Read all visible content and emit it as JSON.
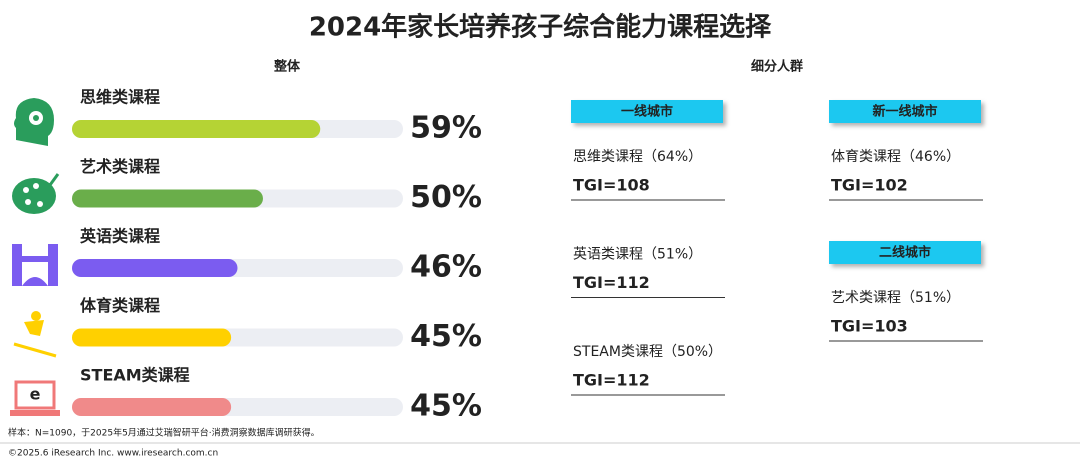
{
  "chart_data": {
    "type": "bar",
    "orientation": "horizontal",
    "title": "2024年家长培养孩子综合能力课程选择",
    "subtitle": "整体",
    "categories": [
      "思维类课程",
      "艺术类课程",
      "英语类课程",
      "体育类课程",
      "STEAM类课程"
    ],
    "values": [
      59,
      50,
      46,
      45,
      45
    ],
    "value_labels": [
      "59%",
      "50%",
      "46%",
      "45%",
      "45%"
    ],
    "colors": [
      "#b5d334",
      "#6aae4a",
      "#7b5cf0",
      "#ffd000",
      "#f08a8a"
    ],
    "track_color": "#eceef3",
    "xlim": [
      20,
      72
    ]
  },
  "segments": {
    "title": "细分人群",
    "groups": [
      {
        "title": "一线城市",
        "items": [
          {
            "label": "思维类课程（64%）",
            "tgi": "TGI=108"
          },
          {
            "label": "英语类课程（51%）",
            "tgi": "TGI=112"
          },
          {
            "label": "STEAM类课程（50%）",
            "tgi": "TGI=112"
          }
        ]
      },
      {
        "title": "新一线城市",
        "items": [
          {
            "label": "体育类课程（46%）",
            "tgi": "TGI=102"
          }
        ]
      },
      {
        "title": "二线城市",
        "items": [
          {
            "label": "艺术类课程（51%）",
            "tgi": "TGI=103"
          }
        ]
      }
    ]
  },
  "footer": {
    "note": "样本：N=1090，于2025年5月通过艾瑞智研平台·消费洞察数据库调研获得。",
    "copyright": "©2025.6 iResearch Inc. www.iresearch.com.cn"
  }
}
